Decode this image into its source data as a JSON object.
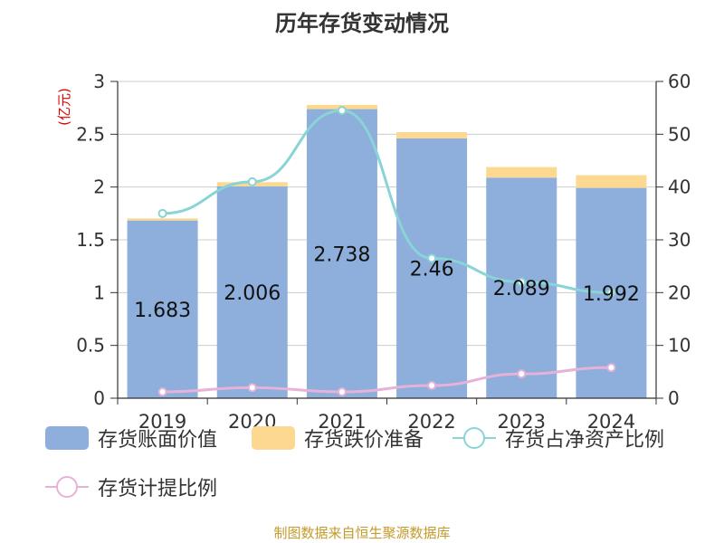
{
  "title": "历年存货变动情况",
  "source": "制图数据来自恒生聚源数据库",
  "colors": {
    "book_value": "#8eaedb",
    "provision": "#fcd891",
    "ratio_net_assets": "#88d4d6",
    "provision_ratio": "#e6b2d8",
    "left_unit": "#e00000",
    "source": "#c49a2a"
  },
  "chart_data": {
    "type": "bar",
    "title": "历年存货变动情况",
    "categories": [
      "2019",
      "2020",
      "2021",
      "2022",
      "2023",
      "2024"
    ],
    "y_left": {
      "unit_label": "(亿元)",
      "min": 0,
      "max": 3,
      "ticks": [
        "0",
        "0.5",
        "1",
        "1.5",
        "2",
        "2.5",
        "3"
      ]
    },
    "y_right": {
      "min": 0,
      "max": 60,
      "ticks": [
        "0",
        "10",
        "20",
        "30",
        "40",
        "50",
        "60"
      ]
    },
    "grid": true,
    "legend_position": "bottom",
    "series": [
      {
        "name": "存货账面价值",
        "kind": "stacked-bar",
        "axis": "left",
        "values": [
          1.683,
          2.006,
          2.738,
          2.46,
          2.089,
          1.992
        ],
        "labels": [
          "1.683",
          "2.006",
          "2.738",
          "2.46",
          "2.089",
          "1.992"
        ]
      },
      {
        "name": "存货跌价准备",
        "kind": "stacked-bar",
        "axis": "left",
        "values": [
          0.02,
          0.04,
          0.04,
          0.06,
          0.1,
          0.12
        ]
      },
      {
        "name": "存货占净资产比例",
        "kind": "line",
        "axis": "right",
        "values": [
          35.0,
          41.0,
          54.5,
          26.5,
          22.0,
          20.0
        ]
      },
      {
        "name": "存货计提比例",
        "kind": "line",
        "axis": "right",
        "values": [
          1.2,
          2.0,
          1.2,
          2.4,
          4.6,
          5.8
        ]
      }
    ]
  }
}
